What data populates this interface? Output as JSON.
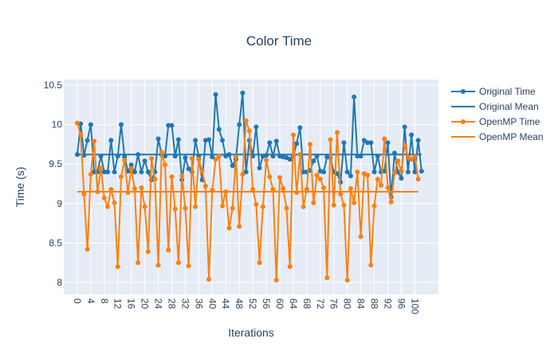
{
  "chart_data": {
    "type": "line",
    "title": "Color Time",
    "xlabel": "Iterations",
    "ylabel": "Time (s)",
    "xlim": [
      -4,
      107
    ],
    "ylim": [
      7.85,
      10.57
    ],
    "x_ticks": [
      0,
      4,
      8,
      12,
      16,
      20,
      24,
      28,
      32,
      36,
      40,
      44,
      48,
      52,
      56,
      60,
      64,
      68,
      72,
      76,
      80,
      84,
      88,
      92,
      96,
      100
    ],
    "y_ticks": [
      8,
      8.5,
      9,
      9.5,
      10,
      10.5
    ],
    "x_tick_labels": [
      "0",
      "4",
      "8",
      "12",
      "16",
      "20",
      "24",
      "28",
      "32",
      "36",
      "40",
      "44",
      "48",
      "52",
      "56",
      "60",
      "64",
      "68",
      "72",
      "76",
      "80",
      "84",
      "88",
      "92",
      "96",
      "100"
    ],
    "y_tick_labels": [
      "8",
      "8.5",
      "9",
      "9.5",
      "10",
      "10.5"
    ],
    "grid": true,
    "legend_position": "top-right",
    "series": [
      {
        "name": "Original Time",
        "mode": "lines+markers",
        "color": "#1f77b4",
        "x_start": 0,
        "values": [
          9.62,
          10.01,
          9.61,
          9.8,
          10.0,
          9.4,
          9.4,
          9.6,
          9.4,
          9.4,
          9.8,
          9.4,
          9.6,
          10.0,
          9.59,
          9.41,
          9.49,
          9.4,
          9.62,
          9.4,
          9.54,
          9.4,
          9.3,
          9.4,
          9.82,
          9.62,
          9.6,
          9.99,
          9.99,
          9.6,
          9.81,
          9.3,
          9.58,
          9.44,
          9.4,
          9.8,
          9.6,
          9.3,
          9.8,
          9.81,
          9.59,
          10.38,
          9.94,
          9.8,
          9.6,
          9.62,
          9.48,
          9.56,
          10.0,
          10.4,
          9.4,
          9.8,
          9.6,
          9.97,
          9.45,
          9.6,
          9.61,
          9.77,
          9.6,
          9.79,
          9.6,
          9.59,
          9.58,
          9.56,
          9.6,
          9.76,
          9.96,
          9.4,
          9.4,
          9.42,
          9.54,
          9.6,
          9.41,
          9.4,
          9.59,
          9.58,
          9.4,
          9.38,
          9.27,
          9.77,
          9.4,
          9.35,
          10.35,
          9.6,
          9.6,
          9.8,
          9.77,
          9.77,
          9.4,
          9.6,
          9.4,
          9.41,
          9.77,
          9.08,
          9.64,
          9.4,
          9.32,
          9.97,
          9.4,
          9.87,
          9.4,
          9.8,
          9.41
        ],
        "mean": 9.62
      },
      {
        "name": "OpenMP Time",
        "mode": "lines+markers",
        "color": "#ff7f0e",
        "x_start": 0,
        "values": [
          10.02,
          9.87,
          9.12,
          8.42,
          9.37,
          9.79,
          9.15,
          9.45,
          9.07,
          8.96,
          9.18,
          9.01,
          8.2,
          9.34,
          9.55,
          9.14,
          9.44,
          9.19,
          8.25,
          9.2,
          8.96,
          8.39,
          9.57,
          9.31,
          8.22,
          9.65,
          9.49,
          8.41,
          9.34,
          8.93,
          8.25,
          9.35,
          8.94,
          8.21,
          9.57,
          8.96,
          9.56,
          9.41,
          9.22,
          8.04,
          9.17,
          9.56,
          9.6,
          8.97,
          9.15,
          8.69,
          8.94,
          9.59,
          8.71,
          9.37,
          10.05,
          9.92,
          9.18,
          8.99,
          8.25,
          8.96,
          9.55,
          9.34,
          9.18,
          8.03,
          9.33,
          9.19,
          8.94,
          8.2,
          9.87,
          9.14,
          9.62,
          8.96,
          9.18,
          9.75,
          9.01,
          9.36,
          9.31,
          9.2,
          8.06,
          9.81,
          8.98,
          9.9,
          9.12,
          8.98,
          8.03,
          9.19,
          9.01,
          9.4,
          8.58,
          9.38,
          9.36,
          8.22,
          8.97,
          9.31,
          9.23,
          9.82,
          9.2,
          9.02,
          9.39,
          9.54,
          9.41,
          9.74,
          9.59,
          9.56,
          9.6,
          9.31
        ],
        "mean": 9.15
      },
      {
        "name": "Original Mean",
        "mode": "lines",
        "color": "#1f77b4"
      },
      {
        "name": "OpenMP Mean",
        "mode": "lines",
        "color": "#ff7f0e"
      }
    ]
  }
}
